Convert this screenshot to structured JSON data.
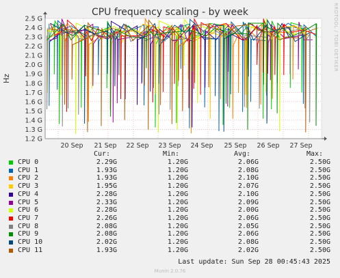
{
  "chart_data": {
    "type": "line",
    "title": "CPU frequency scaling - by week",
    "ylabel": "Hz",
    "ylim": [
      1.2,
      2.5
    ],
    "yticks": [
      "1.2 G",
      "1.3 G",
      "1.4 G",
      "1.5 G",
      "1.6 G",
      "1.7 G",
      "1.8 G",
      "1.9 G",
      "2.0 G",
      "2.1 G",
      "2.2 G",
      "2.3 G",
      "2.4 G",
      "2.5 G"
    ],
    "xticks": [
      "20 Sep",
      "21 Sep",
      "22 Sep",
      "23 Sep",
      "24 Sep",
      "25 Sep",
      "26 Sep",
      "27 Sep"
    ],
    "grid": true,
    "series": [
      {
        "name": "CPU 0",
        "color": "#00cc00",
        "cur": "2.29G",
        "min": "1.20G",
        "avg": "2.06G",
        "max": "2.50G"
      },
      {
        "name": "CPU 1",
        "color": "#0066b3",
        "cur": "1.93G",
        "min": "1.20G",
        "avg": "2.08G",
        "max": "2.50G"
      },
      {
        "name": "CPU 2",
        "color": "#ff8000",
        "cur": "1.93G",
        "min": "1.20G",
        "avg": "2.10G",
        "max": "2.50G"
      },
      {
        "name": "CPU 3",
        "color": "#ffcc00",
        "cur": "1.95G",
        "min": "1.20G",
        "avg": "2.07G",
        "max": "2.50G"
      },
      {
        "name": "CPU 4",
        "color": "#330099",
        "cur": "2.28G",
        "min": "1.20G",
        "avg": "2.10G",
        "max": "2.50G"
      },
      {
        "name": "CPU 5",
        "color": "#990099",
        "cur": "2.33G",
        "min": "1.20G",
        "avg": "2.09G",
        "max": "2.50G"
      },
      {
        "name": "CPU 6",
        "color": "#ccff00",
        "cur": "2.28G",
        "min": "1.20G",
        "avg": "2.00G",
        "max": "2.50G"
      },
      {
        "name": "CPU 7",
        "color": "#ff0000",
        "cur": "2.26G",
        "min": "1.20G",
        "avg": "2.06G",
        "max": "2.50G"
      },
      {
        "name": "CPU 8",
        "color": "#808080",
        "cur": "2.08G",
        "min": "1.20G",
        "avg": "2.05G",
        "max": "2.50G"
      },
      {
        "name": "CPU 9",
        "color": "#008f00",
        "cur": "2.08G",
        "min": "1.20G",
        "avg": "2.06G",
        "max": "2.50G"
      },
      {
        "name": "CPU 10",
        "color": "#00487d",
        "cur": "2.02G",
        "min": "1.20G",
        "avg": "2.08G",
        "max": "2.50G"
      },
      {
        "name": "CPU 11",
        "color": "#b35a00",
        "cur": "1.93G",
        "min": "1.20G",
        "avg": "2.02G",
        "max": "2.50G"
      }
    ]
  },
  "legend_headers": {
    "cur": "Cur:",
    "min": "Min:",
    "avg": "Avg:",
    "max": "Max:"
  },
  "last_update": "Last update: Sun Sep 28 00:45:43 2025",
  "side_label": "RRDTOOL / TOBI OETIKER",
  "footer": "Munin 2.0.76"
}
